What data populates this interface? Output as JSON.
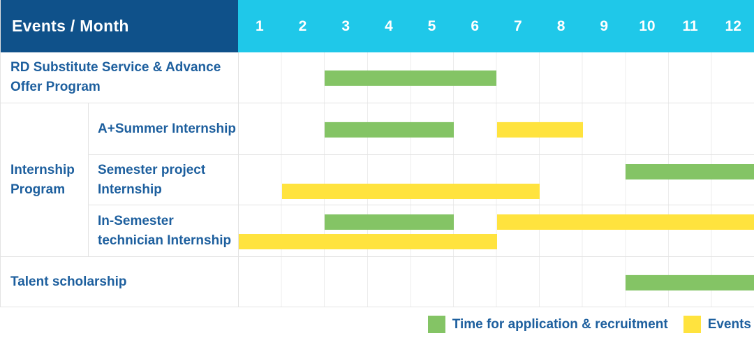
{
  "header": {
    "title": "Events / Month",
    "months": [
      "1",
      "2",
      "3",
      "4",
      "5",
      "6",
      "7",
      "8",
      "9",
      "10",
      "11",
      "12"
    ]
  },
  "group_label": "Internship Program",
  "colors": {
    "header_bg": "#0f518a",
    "months_bg": "#1fc8e9",
    "green": "#84c465",
    "yellow": "#ffe33e",
    "label_text": "#1d5f9e",
    "grid_line": "#ececec",
    "border_line": "#e3e3e3"
  },
  "chart_data": {
    "type": "gantt",
    "title": "Events / Month",
    "x_axis": {
      "label": "Month",
      "ticks": [
        1,
        2,
        3,
        4,
        5,
        6,
        7,
        8,
        9,
        10,
        11,
        12
      ],
      "range": [
        1,
        12
      ]
    },
    "grid": true,
    "legend_position": "bottom-right",
    "rows": [
      {
        "name": "RD Substitute Service & Advance Offer Program",
        "group": null,
        "spans": [
          {
            "kind": "application_recruitment",
            "months": [
              3,
              6
            ],
            "lane": "center"
          }
        ]
      },
      {
        "name": "A+Summer Internship",
        "group": "Internship Program",
        "spans": [
          {
            "kind": "application_recruitment",
            "months": [
              3,
              5
            ],
            "lane": "center"
          },
          {
            "kind": "events",
            "months": [
              7,
              8
            ],
            "lane": "center"
          }
        ]
      },
      {
        "name": "Semester project Internship",
        "group": "Internship Program",
        "spans": [
          {
            "kind": "application_recruitment",
            "months": [
              10,
              12
            ],
            "lane": "top"
          },
          {
            "kind": "events",
            "months": [
              2,
              7
            ],
            "lane": "bottom"
          }
        ]
      },
      {
        "name": "In-Semester technician Internship",
        "group": "Internship Program",
        "spans": [
          {
            "kind": "application_recruitment",
            "months": [
              3,
              5
            ],
            "lane": "top"
          },
          {
            "kind": "events",
            "months": [
              7,
              12
            ],
            "lane": "top"
          },
          {
            "kind": "events",
            "months": [
              1,
              6
            ],
            "lane": "bottom"
          }
        ]
      },
      {
        "name": "Talent scholarship",
        "group": null,
        "spans": [
          {
            "kind": "application_recruitment",
            "months": [
              10,
              12
            ],
            "lane": "center"
          }
        ]
      }
    ],
    "legend": [
      {
        "kind": "application_recruitment",
        "label": "Time for application & recruitment"
      },
      {
        "kind": "events",
        "label": "Events"
      }
    ]
  }
}
